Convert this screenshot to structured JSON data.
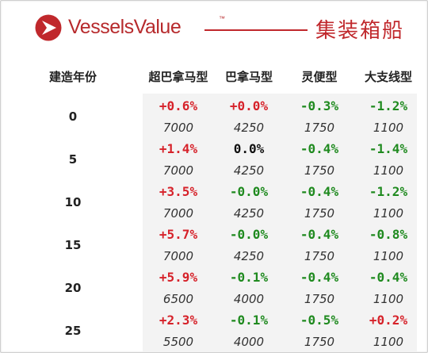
{
  "header": {
    "brand": "VesselsValue",
    "trademark": "™",
    "title": "集装箱船"
  },
  "colors": {
    "brand_red": "#c0282c",
    "positive": "#d6222a",
    "negative": "#1f8a1f",
    "neutral": "#111111"
  },
  "table": {
    "columns": [
      "建造年份",
      "超巴拿马型",
      "巴拿马型",
      "灵便型",
      "大支线型"
    ],
    "rows": [
      {
        "age": "0",
        "pct": [
          "+0.6%",
          "+0.0%",
          "-0.3%",
          "-1.2%"
        ],
        "val": [
          "7000",
          "4250",
          "1750",
          "1100"
        ],
        "tone": [
          "pos",
          "pos",
          "neg",
          "neg"
        ]
      },
      {
        "age": "5",
        "pct": [
          "+1.4%",
          "0.0%",
          "-0.4%",
          "-1.4%"
        ],
        "val": [
          "7000",
          "4250",
          "1750",
          "1100"
        ],
        "tone": [
          "pos",
          "neu",
          "neg",
          "neg"
        ]
      },
      {
        "age": "10",
        "pct": [
          "+3.5%",
          "-0.0%",
          "-0.4%",
          "-1.2%"
        ],
        "val": [
          "7000",
          "4250",
          "1750",
          "1100"
        ],
        "tone": [
          "pos",
          "neg",
          "neg",
          "neg"
        ]
      },
      {
        "age": "15",
        "pct": [
          "+5.7%",
          "-0.0%",
          "-0.4%",
          "-0.8%"
        ],
        "val": [
          "7000",
          "4250",
          "1750",
          "1100"
        ],
        "tone": [
          "pos",
          "neg",
          "neg",
          "neg"
        ]
      },
      {
        "age": "20",
        "pct": [
          "+5.9%",
          "-0.1%",
          "-0.4%",
          "-0.4%"
        ],
        "val": [
          "6500",
          "4000",
          "1750",
          "1100"
        ],
        "tone": [
          "pos",
          "neg",
          "neg",
          "neg"
        ]
      },
      {
        "age": "25",
        "pct": [
          "+2.3%",
          "-0.1%",
          "-0.5%",
          "+0.2%"
        ],
        "val": [
          "5500",
          "4000",
          "1750",
          "1100"
        ],
        "tone": [
          "pos",
          "neg",
          "neg",
          "pos"
        ]
      }
    ]
  }
}
